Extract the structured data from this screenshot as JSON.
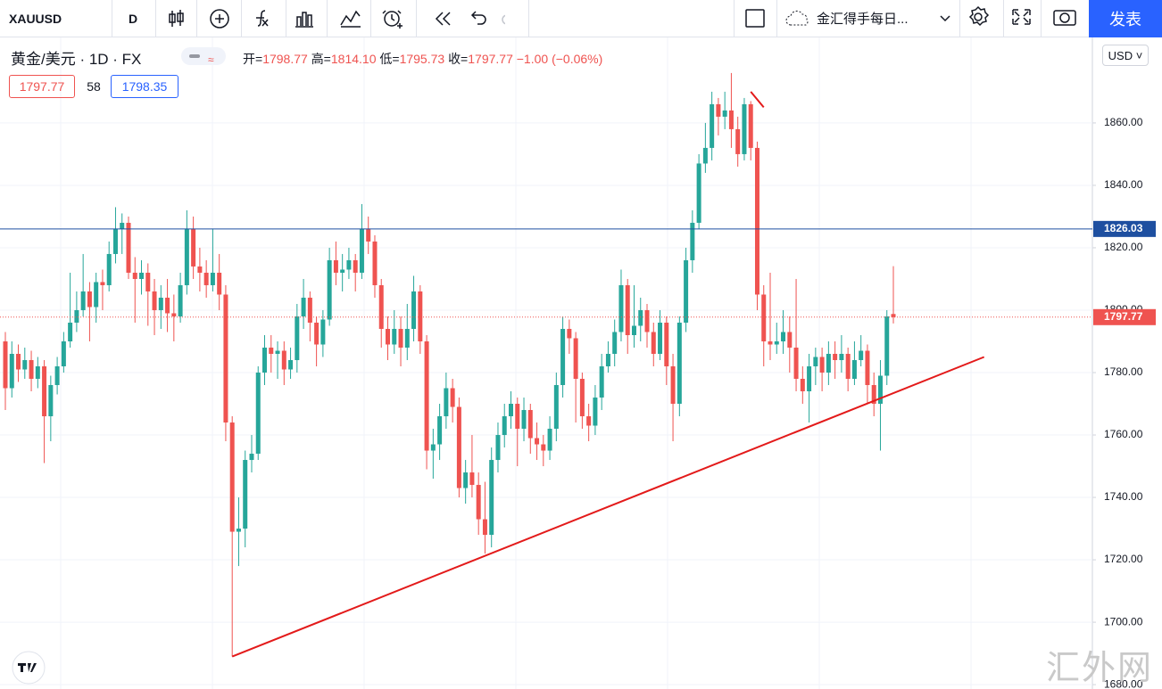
{
  "toolbar": {
    "symbol": "XAUUSD",
    "interval": "D",
    "layout_name": "金汇得手每日...",
    "publish": "发表"
  },
  "legend": {
    "title": "黄金/美元 · 1D · FX",
    "open_label": "开=",
    "open": "1798.77",
    "high_label": "高=",
    "high": "1814.10",
    "low_label": "低=",
    "low": "1795.73",
    "close_label": "收=",
    "close": "1797.77",
    "change": "−1.00 (−0.06%)",
    "bid": "1797.77",
    "spread": "58",
    "ask": "1798.35"
  },
  "currency": "USD",
  "watermark": "汇外网",
  "chart_data": {
    "type": "candlestick",
    "up_color": "#26a69a",
    "down_color": "#ef5350",
    "ylim": [
      1678.6,
      1887.4
    ],
    "yticks": [
      {
        "value": 1680,
        "label": "1680.00"
      },
      {
        "value": 1700,
        "label": "1700.00"
      },
      {
        "value": 1720,
        "label": "1720.00"
      },
      {
        "value": 1740,
        "label": "1740.00"
      },
      {
        "value": 1760,
        "label": "1760.00"
      },
      {
        "value": 1780,
        "label": "1780.00"
      },
      {
        "value": 1800,
        "label": "1800.00"
      },
      {
        "value": 1820,
        "label": "1820.00"
      },
      {
        "value": 1840,
        "label": "1840.00"
      },
      {
        "value": 1860,
        "label": "1860.00"
      }
    ],
    "hline": {
      "value": 1826.03,
      "color": "#1e4fa0"
    },
    "last_price": 1797.77,
    "trend_lines": [
      {
        "color": "#e31a1a",
        "points": [
          [
            35,
            1689
          ],
          [
            151,
            1785
          ]
        ]
      },
      {
        "color": "#e31a1a",
        "points": [
          [
            115,
            1870
          ],
          [
            117,
            1865
          ]
        ]
      }
    ],
    "candles": [
      [
        1790,
        1793,
        1768,
        1775
      ],
      [
        1775,
        1790,
        1772,
        1786
      ],
      [
        1786,
        1789,
        1777,
        1781
      ],
      [
        1781,
        1788,
        1778,
        1784
      ],
      [
        1784,
        1787,
        1774,
        1778
      ],
      [
        1778,
        1785,
        1775,
        1782
      ],
      [
        1782,
        1784,
        1751,
        1766
      ],
      [
        1766,
        1779,
        1758,
        1776
      ],
      [
        1776,
        1785,
        1773,
        1782
      ],
      [
        1782,
        1793,
        1780,
        1790
      ],
      [
        1790,
        1812,
        1788,
        1796
      ],
      [
        1796,
        1806,
        1793,
        1800
      ],
      [
        1800,
        1818,
        1798,
        1806
      ],
      [
        1806,
        1809,
        1790,
        1801
      ],
      [
        1801,
        1812,
        1796,
        1809
      ],
      [
        1809,
        1813,
        1800,
        1808
      ],
      [
        1808,
        1822,
        1806,
        1818
      ],
      [
        1818,
        1833,
        1815,
        1826
      ],
      [
        1826,
        1831,
        1818,
        1828
      ],
      [
        1828,
        1830,
        1810,
        1812
      ],
      [
        1812,
        1817,
        1796,
        1810
      ],
      [
        1810,
        1816,
        1805,
        1812
      ],
      [
        1812,
        1815,
        1795,
        1806
      ],
      [
        1806,
        1810,
        1792,
        1800
      ],
      [
        1800,
        1808,
        1794,
        1804
      ],
      [
        1804,
        1810,
        1793,
        1799
      ],
      [
        1799,
        1805,
        1790,
        1798
      ],
      [
        1798,
        1812,
        1796,
        1808
      ],
      [
        1808,
        1832,
        1805,
        1826
      ],
      [
        1826,
        1830,
        1810,
        1814
      ],
      [
        1814,
        1820,
        1806,
        1812
      ],
      [
        1812,
        1816,
        1804,
        1808
      ],
      [
        1808,
        1826,
        1806,
        1812
      ],
      [
        1812,
        1818,
        1800,
        1805
      ],
      [
        1805,
        1808,
        1758,
        1764
      ],
      [
        1764,
        1766,
        1689,
        1729
      ],
      [
        1729,
        1740,
        1718,
        1730
      ],
      [
        1730,
        1755,
        1724,
        1752
      ],
      [
        1752,
        1760,
        1748,
        1754
      ],
      [
        1754,
        1782,
        1752,
        1780
      ],
      [
        1780,
        1792,
        1776,
        1788
      ],
      [
        1788,
        1792,
        1780,
        1786
      ],
      [
        1786,
        1790,
        1778,
        1787
      ],
      [
        1787,
        1790,
        1776,
        1781
      ],
      [
        1781,
        1788,
        1778,
        1784
      ],
      [
        1784,
        1802,
        1780,
        1798
      ],
      [
        1798,
        1810,
        1794,
        1804
      ],
      [
        1804,
        1806,
        1790,
        1796
      ],
      [
        1796,
        1798,
        1782,
        1789
      ],
      [
        1789,
        1800,
        1785,
        1797
      ],
      [
        1797,
        1820,
        1795,
        1816
      ],
      [
        1816,
        1822,
        1808,
        1812
      ],
      [
        1812,
        1818,
        1806,
        1813
      ],
      [
        1813,
        1820,
        1810,
        1816
      ],
      [
        1816,
        1818,
        1806,
        1812
      ],
      [
        1812,
        1834,
        1810,
        1826
      ],
      [
        1826,
        1830,
        1818,
        1822
      ],
      [
        1822,
        1824,
        1804,
        1808
      ],
      [
        1808,
        1810,
        1788,
        1794
      ],
      [
        1794,
        1798,
        1784,
        1789
      ],
      [
        1789,
        1800,
        1786,
        1794
      ],
      [
        1794,
        1798,
        1782,
        1788
      ],
      [
        1788,
        1802,
        1784,
        1794
      ],
      [
        1794,
        1811,
        1790,
        1806
      ],
      [
        1806,
        1808,
        1786,
        1790
      ],
      [
        1790,
        1792,
        1749,
        1755
      ],
      [
        1755,
        1762,
        1746,
        1757
      ],
      [
        1757,
        1770,
        1752,
        1766
      ],
      [
        1766,
        1780,
        1762,
        1775
      ],
      [
        1775,
        1778,
        1764,
        1769
      ],
      [
        1769,
        1772,
        1740,
        1743
      ],
      [
        1743,
        1752,
        1738,
        1748
      ],
      [
        1748,
        1760,
        1740,
        1744
      ],
      [
        1744,
        1748,
        1728,
        1733
      ],
      [
        1733,
        1745,
        1722,
        1728
      ],
      [
        1728,
        1756,
        1724,
        1752
      ],
      [
        1752,
        1764,
        1748,
        1760
      ],
      [
        1760,
        1770,
        1756,
        1766
      ],
      [
        1766,
        1774,
        1762,
        1770
      ],
      [
        1770,
        1772,
        1750,
        1762
      ],
      [
        1762,
        1772,
        1758,
        1768
      ],
      [
        1768,
        1770,
        1754,
        1759
      ],
      [
        1759,
        1764,
        1752,
        1757
      ],
      [
        1757,
        1760,
        1750,
        1755
      ],
      [
        1755,
        1766,
        1752,
        1762
      ],
      [
        1762,
        1780,
        1758,
        1776
      ],
      [
        1776,
        1798,
        1772,
        1794
      ],
      [
        1794,
        1797,
        1786,
        1791
      ],
      [
        1791,
        1793,
        1764,
        1778
      ],
      [
        1778,
        1780,
        1762,
        1766
      ],
      [
        1766,
        1770,
        1758,
        1763
      ],
      [
        1763,
        1776,
        1760,
        1772
      ],
      [
        1772,
        1786,
        1768,
        1782
      ],
      [
        1782,
        1790,
        1780,
        1786
      ],
      [
        1786,
        1797,
        1782,
        1793
      ],
      [
        1793,
        1813,
        1790,
        1808
      ],
      [
        1808,
        1810,
        1786,
        1792
      ],
      [
        1792,
        1808,
        1788,
        1795
      ],
      [
        1795,
        1804,
        1790,
        1800
      ],
      [
        1800,
        1802,
        1788,
        1793
      ],
      [
        1793,
        1796,
        1782,
        1786
      ],
      [
        1786,
        1800,
        1784,
        1796
      ],
      [
        1796,
        1798,
        1776,
        1782
      ],
      [
        1782,
        1786,
        1758,
        1770
      ],
      [
        1770,
        1798,
        1766,
        1796
      ],
      [
        1796,
        1820,
        1793,
        1816
      ],
      [
        1816,
        1832,
        1812,
        1828
      ],
      [
        1828,
        1850,
        1826,
        1847
      ],
      [
        1847,
        1860,
        1844,
        1852
      ],
      [
        1852,
        1870,
        1848,
        1866
      ],
      [
        1866,
        1868,
        1856,
        1862
      ],
      [
        1862,
        1870,
        1858,
        1864
      ],
      [
        1864,
        1876,
        1852,
        1858
      ],
      [
        1858,
        1862,
        1846,
        1850
      ],
      [
        1850,
        1868,
        1848,
        1866
      ],
      [
        1866,
        1867,
        1848,
        1852
      ],
      [
        1852,
        1854,
        1800,
        1805
      ],
      [
        1805,
        1808,
        1782,
        1790
      ],
      [
        1790,
        1812,
        1784,
        1789
      ],
      [
        1789,
        1796,
        1786,
        1790
      ],
      [
        1790,
        1800,
        1786,
        1793
      ],
      [
        1793,
        1798,
        1780,
        1788
      ],
      [
        1788,
        1810,
        1774,
        1778
      ],
      [
        1778,
        1782,
        1770,
        1774
      ],
      [
        1774,
        1786,
        1764,
        1782
      ],
      [
        1782,
        1788,
        1776,
        1785
      ],
      [
        1785,
        1788,
        1774,
        1780
      ],
      [
        1780,
        1790,
        1776,
        1786
      ],
      [
        1786,
        1790,
        1778,
        1784
      ],
      [
        1784,
        1792,
        1780,
        1786
      ],
      [
        1786,
        1788,
        1774,
        1778
      ],
      [
        1778,
        1790,
        1776,
        1784
      ],
      [
        1784,
        1792,
        1782,
        1787
      ],
      [
        1787,
        1789,
        1770,
        1776
      ],
      [
        1776,
        1780,
        1766,
        1770
      ],
      [
        1770,
        1784,
        1755,
        1779
      ],
      [
        1779,
        1800,
        1776,
        1798
      ],
      [
        1798.77,
        1814.1,
        1795.73,
        1797.77
      ]
    ]
  }
}
